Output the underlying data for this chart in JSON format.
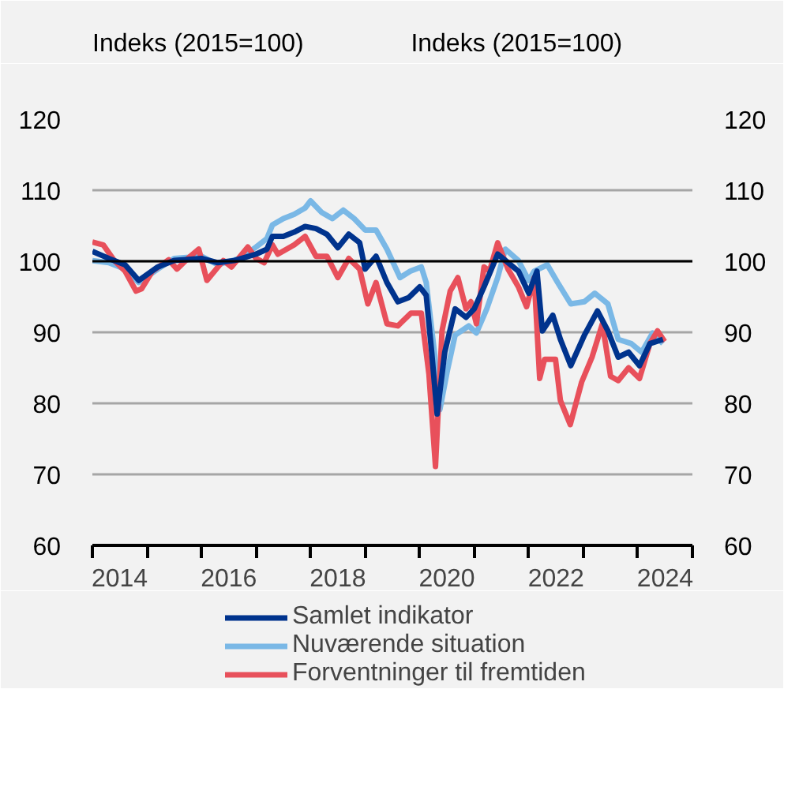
{
  "chart_data": {
    "type": "line",
    "ylabel": "Indeks (2015=100)",
    "y2label": "Indeks (2015=100)",
    "xlim": [
      2014,
      2025
    ],
    "xticks": [
      {
        "value": 2014,
        "label": null
      },
      {
        "value": 2015,
        "label": null
      },
      {
        "value": 2016,
        "label": null
      },
      {
        "value": 2017,
        "label": null
      },
      {
        "value": 2018,
        "label": null
      },
      {
        "value": 2019,
        "label": null
      },
      {
        "value": 2020,
        "label": null
      },
      {
        "value": 2021,
        "label": null
      },
      {
        "value": 2022,
        "label": null
      },
      {
        "value": 2023,
        "label": null
      },
      {
        "value": 2024,
        "label": null
      },
      {
        "value": 2025,
        "label": null
      },
      {
        "value": 2014.5,
        "label": "2014"
      },
      {
        "value": 2016.5,
        "label": "2016"
      },
      {
        "value": 2018.5,
        "label": "2018"
      },
      {
        "value": 2020.5,
        "label": "2020"
      },
      {
        "value": 2022.5,
        "label": "2022"
      },
      {
        "value": 2024.5,
        "label": "2024"
      }
    ],
    "ylim": [
      60,
      120
    ],
    "yticks": [
      60,
      70,
      80,
      90,
      100,
      110,
      120
    ],
    "y2lim": [
      60,
      120
    ],
    "y2ticks": [
      60,
      70,
      80,
      90,
      100,
      110,
      120
    ],
    "grid": "y",
    "legend": "bottom",
    "line_style": "solid",
    "marker": "none",
    "ref_lines": [
      {
        "axis": "y",
        "value": 100,
        "color": "#000000"
      }
    ],
    "series": [
      {
        "name": "Nuværende situation",
        "color": "#7ab8e6",
        "x": [
          2014.0,
          2014.3,
          2014.6,
          2014.85,
          2015.2,
          2015.5,
          2016.0,
          2016.3,
          2016.7,
          2017.0,
          2017.2,
          2017.3,
          2017.5,
          2017.7,
          2017.9,
          2018.0,
          2018.2,
          2018.4,
          2018.6,
          2018.8,
          2019.0,
          2019.2,
          2019.4,
          2019.64,
          2019.83,
          2020.03,
          2020.12,
          2020.27,
          2020.37,
          2020.51,
          2020.65,
          2020.9,
          2021.04,
          2021.23,
          2021.43,
          2021.57,
          2021.81,
          2022.0,
          2022.1,
          2022.34,
          2022.53,
          2022.77,
          2023.02,
          2023.21,
          2023.45,
          2023.64,
          2023.88,
          2024.07,
          2024.27,
          2024.46
        ],
        "values": [
          100.1,
          99.8,
          98.9,
          97.0,
          98.9,
          100.4,
          100.7,
          99.5,
          100.4,
          102.0,
          103.2,
          105.1,
          106.0,
          106.6,
          107.5,
          108.5,
          106.9,
          106.0,
          107.2,
          106.0,
          104.4,
          104.4,
          101.7,
          97.7,
          98.6,
          99.2,
          97.0,
          87.2,
          79.1,
          84.7,
          89.6,
          90.9,
          89.9,
          93.3,
          97.7,
          101.7,
          100.1,
          97.3,
          98.6,
          99.5,
          97.0,
          94.0,
          94.3,
          95.5,
          94.0,
          89.0,
          88.4,
          87.2,
          89.9,
          88.4
        ]
      },
      {
        "name": "Forventninger til fremtiden",
        "color": "#e8505b",
        "x": [
          2014.0,
          2014.2,
          2014.4,
          2014.6,
          2014.8,
          2014.9,
          2015.1,
          2015.4,
          2015.55,
          2015.75,
          2015.95,
          2016.1,
          2016.4,
          2016.55,
          2016.85,
          2017.0,
          2017.15,
          2017.3,
          2017.4,
          2017.7,
          2017.9,
          2018.1,
          2018.3,
          2018.5,
          2018.7,
          2018.9,
          2019.05,
          2019.2,
          2019.4,
          2019.6,
          2019.84,
          2020.03,
          2020.17,
          2020.29,
          2020.41,
          2020.56,
          2020.7,
          2020.85,
          2020.94,
          2021.04,
          2021.18,
          2021.28,
          2021.43,
          2021.62,
          2021.81,
          2021.96,
          2022.1,
          2022.2,
          2022.29,
          2022.49,
          2022.58,
          2022.76,
          2022.97,
          2023.16,
          2023.35,
          2023.5,
          2023.64,
          2023.83,
          2024.03,
          2024.22,
          2024.36,
          2024.49
        ],
        "values": [
          102.7,
          102.3,
          100.1,
          98.6,
          95.8,
          96.1,
          98.6,
          100.2,
          98.9,
          100.4,
          101.7,
          97.3,
          100.1,
          99.2,
          102.0,
          100.4,
          99.8,
          102.3,
          101.0,
          102.3,
          103.5,
          100.7,
          100.7,
          97.7,
          100.4,
          98.9,
          94.0,
          97.0,
          91.2,
          90.9,
          92.7,
          92.7,
          84.1,
          71.1,
          90.2,
          95.8,
          97.7,
          93.3,
          94.3,
          91.2,
          99.2,
          98.6,
          102.6,
          98.9,
          96.4,
          93.6,
          97.7,
          83.5,
          86.2,
          86.2,
          80.4,
          77.0,
          83.0,
          86.5,
          91.2,
          83.8,
          83.2,
          85.0,
          83.5,
          88.4,
          90.2,
          88.7
        ]
      },
      {
        "name": "Samlet indikator",
        "color": "#00338d",
        "x": [
          2014.0,
          2014.3,
          2014.6,
          2014.85,
          2015.2,
          2015.5,
          2016.0,
          2016.3,
          2016.6,
          2017.0,
          2017.2,
          2017.3,
          2017.5,
          2017.7,
          2017.9,
          2018.1,
          2018.3,
          2018.5,
          2018.7,
          2018.9,
          2019.0,
          2019.2,
          2019.4,
          2019.6,
          2019.8,
          2020.0,
          2020.12,
          2020.22,
          2020.32,
          2020.46,
          2020.65,
          2020.85,
          2021.0,
          2021.18,
          2021.43,
          2021.62,
          2021.81,
          2022.0,
          2022.15,
          2022.25,
          2022.44,
          2022.58,
          2022.77,
          2023.02,
          2023.26,
          2023.45,
          2023.64,
          2023.83,
          2024.03,
          2024.22,
          2024.46
        ],
        "values": [
          101.4,
          100.4,
          99.5,
          97.3,
          99.2,
          100.1,
          100.4,
          99.8,
          100.1,
          101.0,
          101.7,
          103.5,
          103.5,
          104.1,
          104.9,
          104.6,
          103.8,
          101.9,
          103.8,
          102.6,
          98.9,
          100.7,
          97.0,
          94.3,
          94.9,
          96.4,
          95.2,
          87.2,
          78.5,
          87.2,
          93.3,
          92.1,
          93.3,
          96.4,
          101.0,
          99.8,
          98.6,
          95.5,
          98.6,
          90.2,
          92.4,
          89.0,
          85.3,
          89.6,
          93.0,
          90.2,
          86.5,
          87.2,
          85.3,
          88.4,
          89.0
        ]
      }
    ]
  }
}
